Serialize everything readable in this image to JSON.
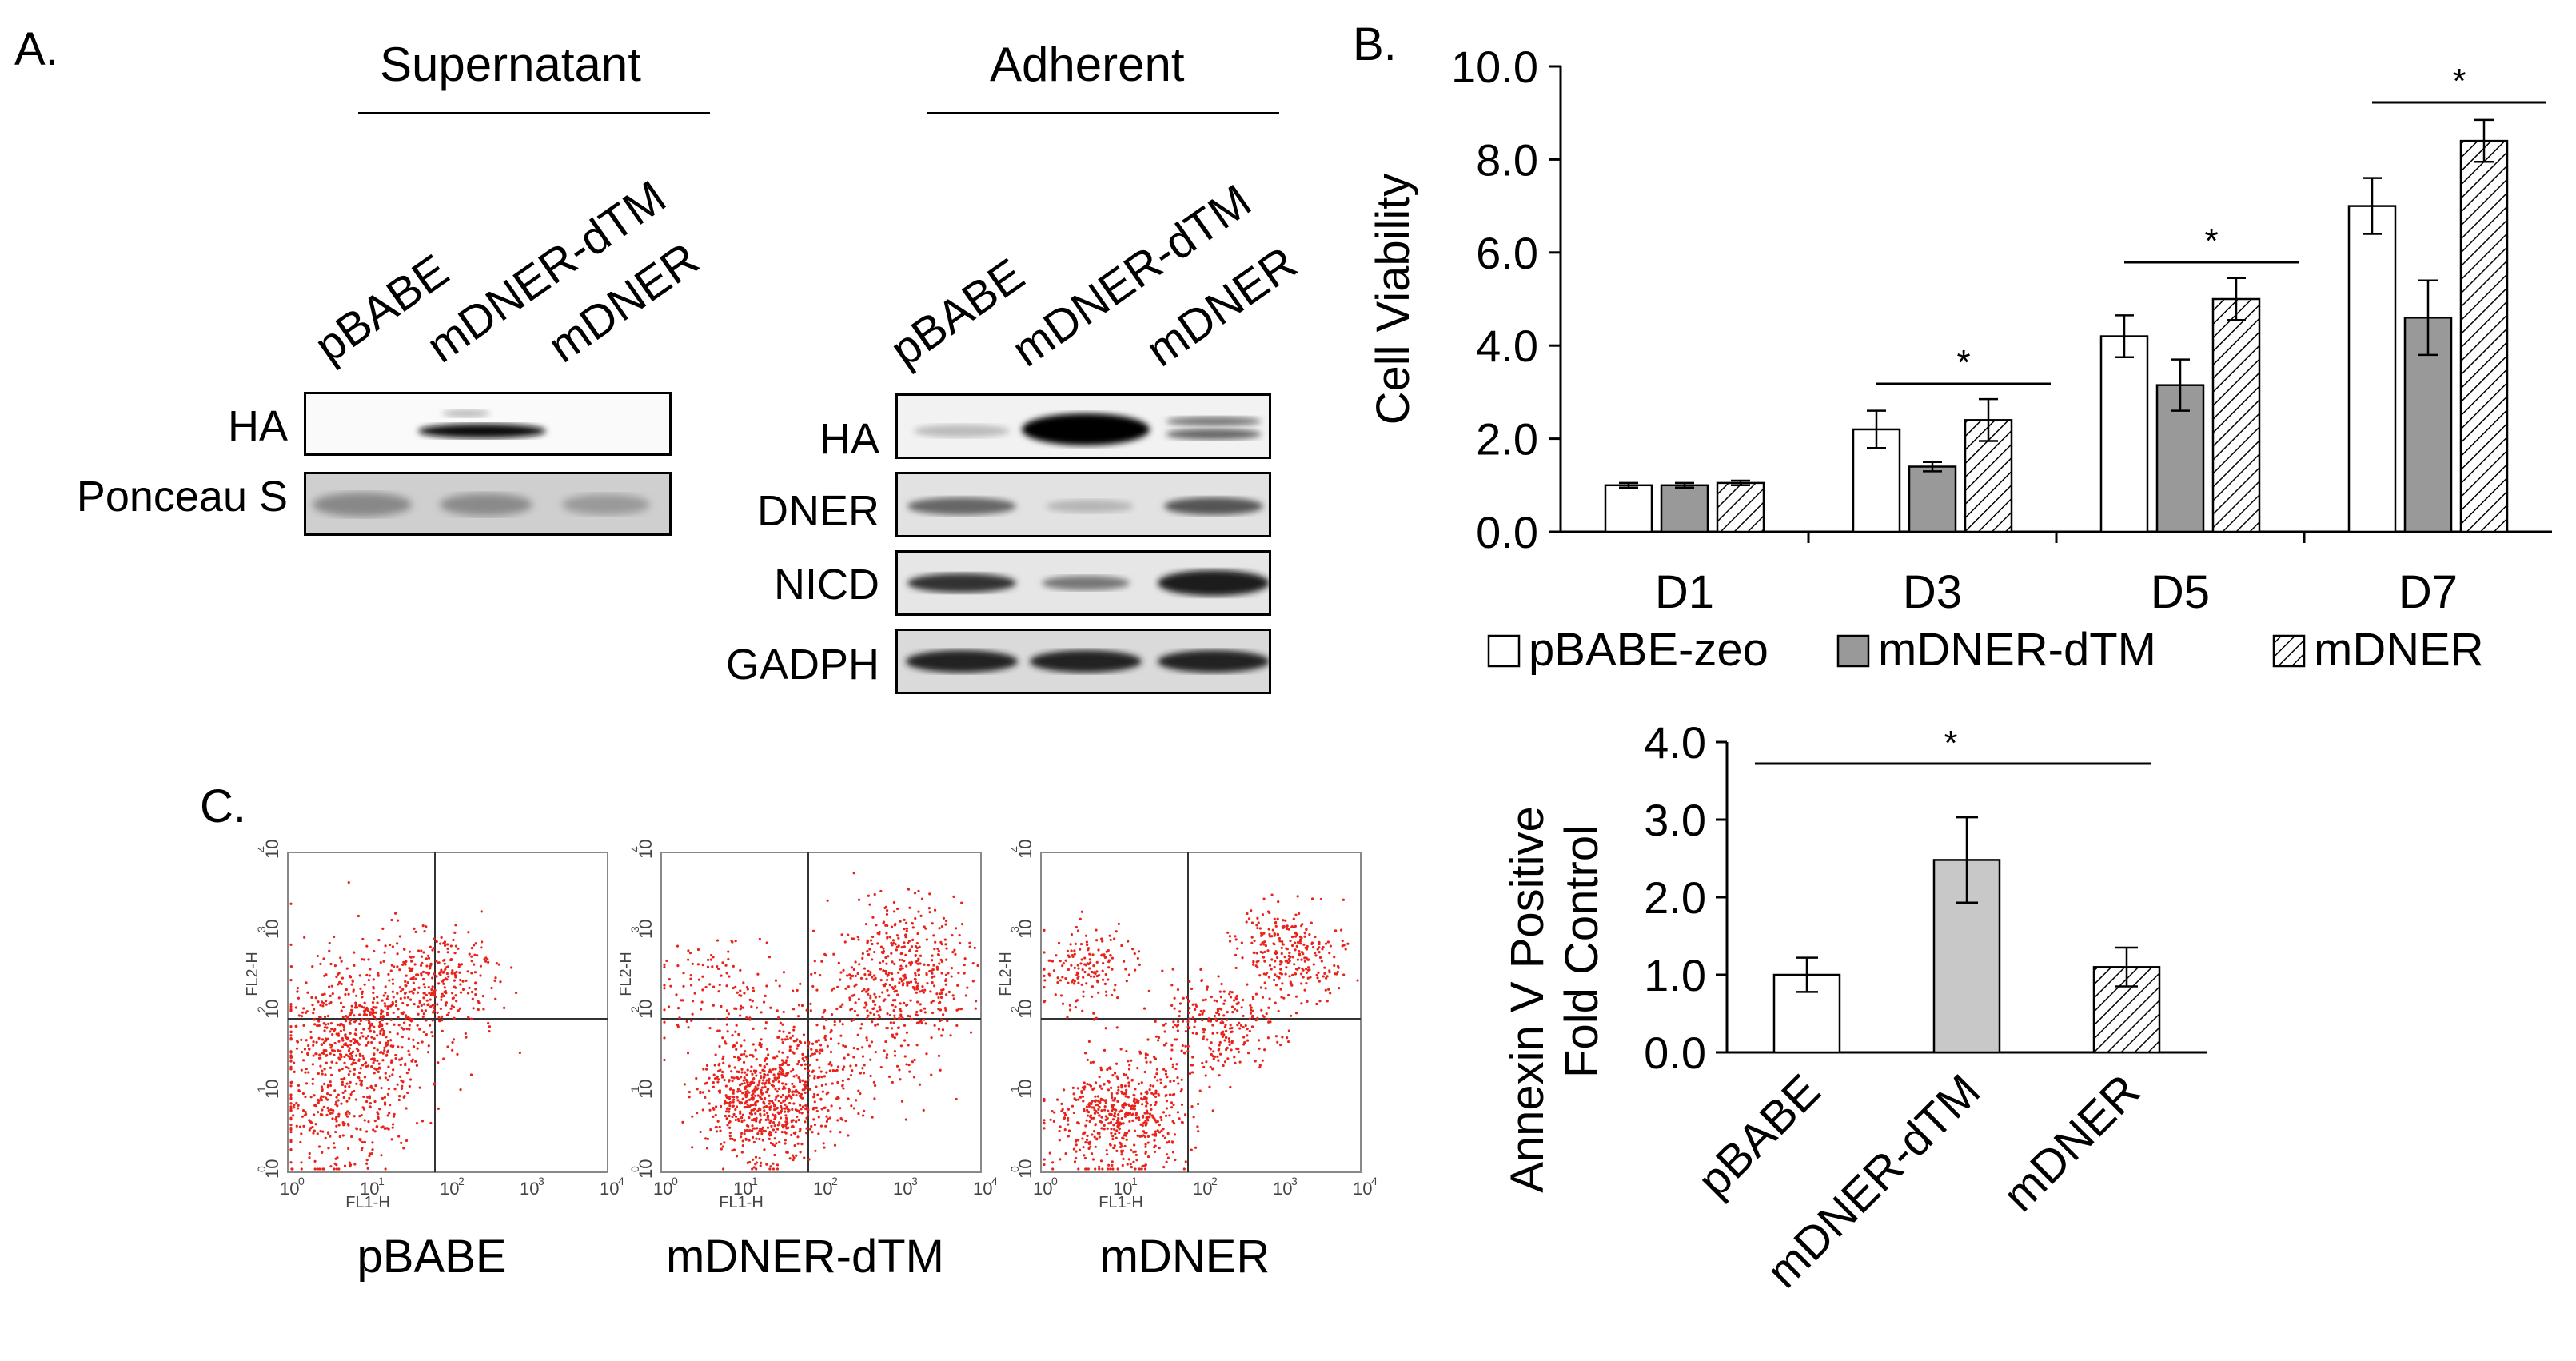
{
  "panelA": {
    "letter": "A.",
    "supernatant": {
      "header": "Supernatant",
      "lanes": [
        "pBABE",
        "mDNER-dTM",
        "mDNER"
      ],
      "rows": [
        "HA",
        "Ponceau S"
      ]
    },
    "adherent": {
      "header": "Adherent",
      "lanes": [
        "pBABE",
        "mDNER-dTM",
        "mDNER"
      ],
      "rows": [
        "HA",
        "DNER",
        "NICD",
        "GADPH"
      ]
    }
  },
  "panelB": {
    "letter": "B."
  },
  "panelC": {
    "letter": "C.",
    "plots": [
      {
        "title": "pBABE"
      },
      {
        "title": "mDNER-dTM"
      },
      {
        "title": "mDNER"
      }
    ],
    "axes": {
      "xlabel": "FL1-H",
      "ylabel": "FL2-H",
      "ticks": [
        "10",
        "0",
        "10",
        "1",
        "10",
        "2",
        "10",
        "3",
        "10",
        "4"
      ]
    }
  },
  "chart_data": [
    {
      "type": "bar",
      "ylabel": "Cell Viability",
      "ylim": [
        0,
        10
      ],
      "yticks": [
        "0.0",
        "2.0",
        "4.0",
        "6.0",
        "8.0",
        "10.0"
      ],
      "categories": [
        "D1",
        "D3",
        "D5",
        "D7"
      ],
      "series": [
        {
          "name": "pBABE-zeo",
          "values": [
            1.0,
            2.2,
            4.2,
            7.0
          ],
          "errors": [
            0.05,
            0.4,
            0.45,
            0.6
          ],
          "fill": "white"
        },
        {
          "name": "mDNER-dTM",
          "values": [
            1.0,
            1.4,
            3.15,
            4.6
          ],
          "errors": [
            0.05,
            0.1,
            0.55,
            0.8
          ],
          "fill": "#999999"
        },
        {
          "name": "mDNER",
          "values": [
            1.05,
            2.4,
            5.0,
            8.4
          ],
          "errors": [
            0.05,
            0.45,
            0.45,
            0.45
          ],
          "fill": "hatch"
        }
      ],
      "annotations": [
        "*",
        "*",
        "*"
      ],
      "legend": "bottom"
    },
    {
      "type": "bar",
      "ylabel": [
        "Annexin  V Positive",
        "Fold Control"
      ],
      "ylim": [
        0,
        4
      ],
      "yticks": [
        "0.0",
        "1.0",
        "2.0",
        "3.0",
        "4.0"
      ],
      "categories": [
        "pBABE",
        "mDNER-dTM",
        "mDNER"
      ],
      "values": [
        1.0,
        2.48,
        1.1
      ],
      "errors": [
        0.22,
        0.55,
        0.25
      ],
      "fills": [
        "white",
        "#c8c8c8",
        "hatch"
      ],
      "annotations": [
        "*"
      ]
    }
  ]
}
